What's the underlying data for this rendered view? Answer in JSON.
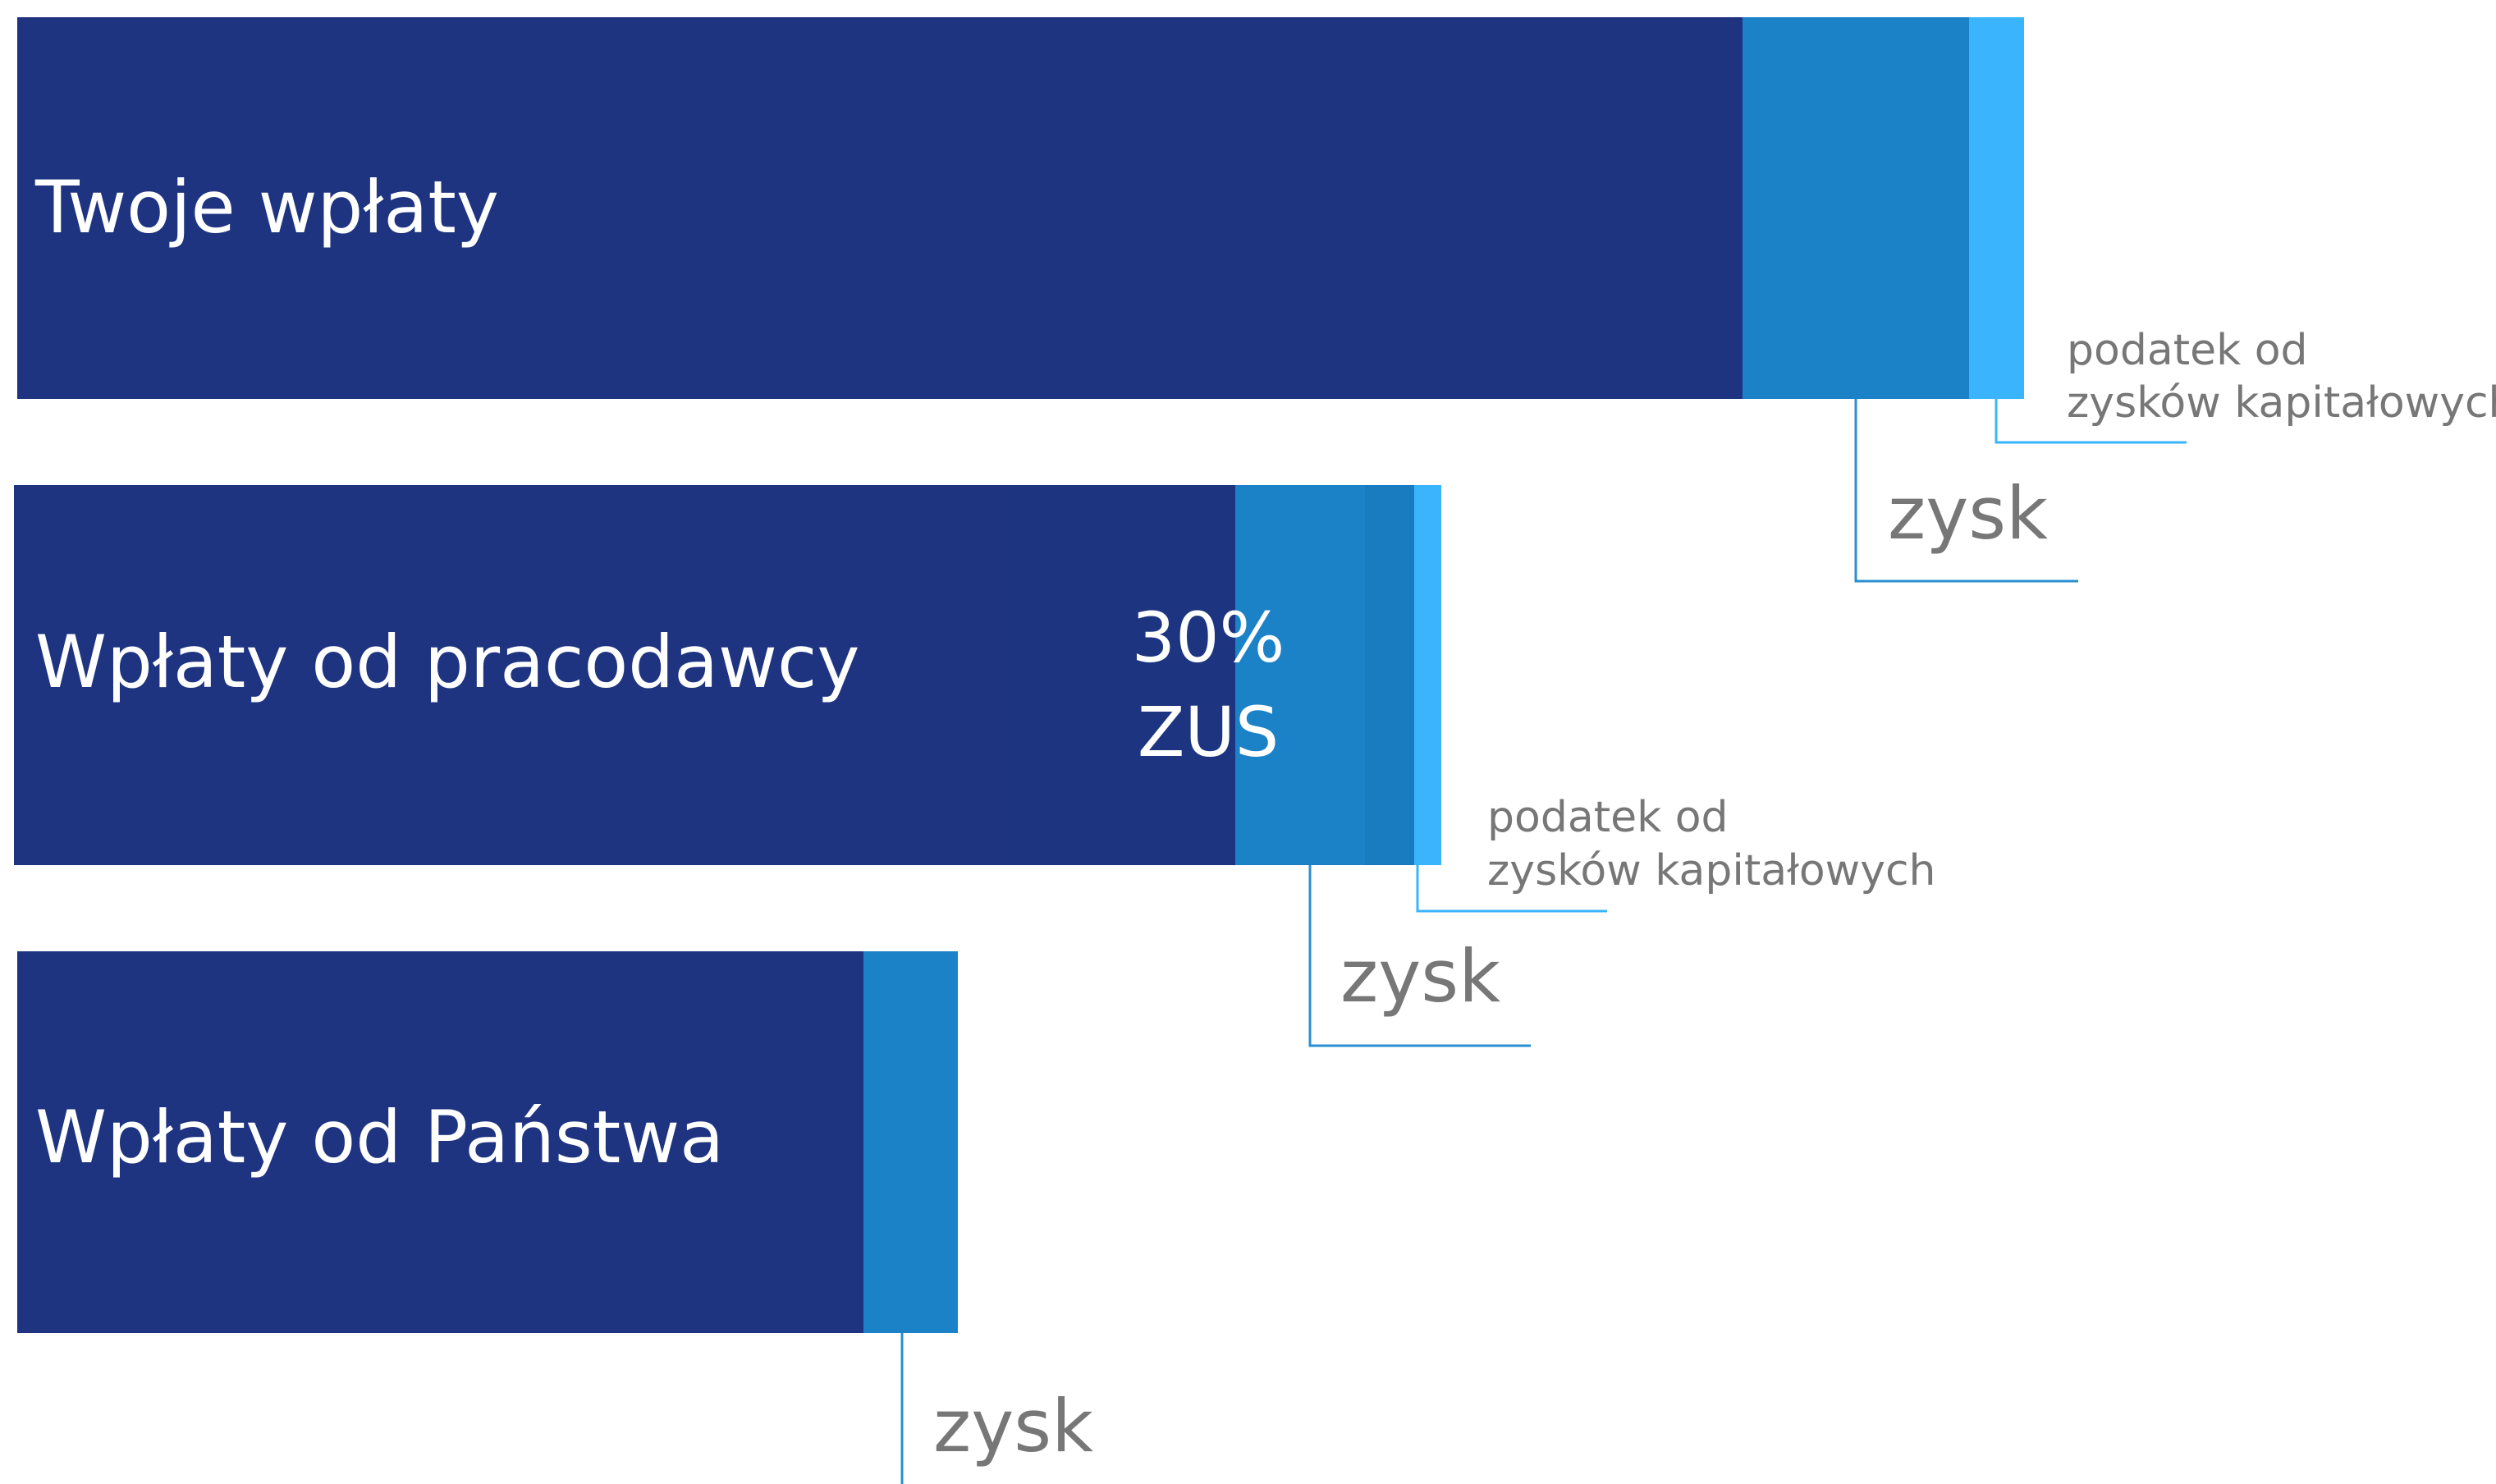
{
  "rows": [
    {
      "label": "Twoje wpłaty",
      "gain": "zysk",
      "tax": [
        "podatek od",
        "zysków kapitałowych"
      ]
    },
    {
      "label": "Wpłaty od pracodawcy",
      "gain": "zysk",
      "tax": [
        "podatek od",
        "zysków kapitałowych"
      ],
      "note": [
        "30%",
        "ZUS"
      ]
    },
    {
      "label": "Wpłaty od Państwa",
      "gain": "zysk"
    }
  ]
}
